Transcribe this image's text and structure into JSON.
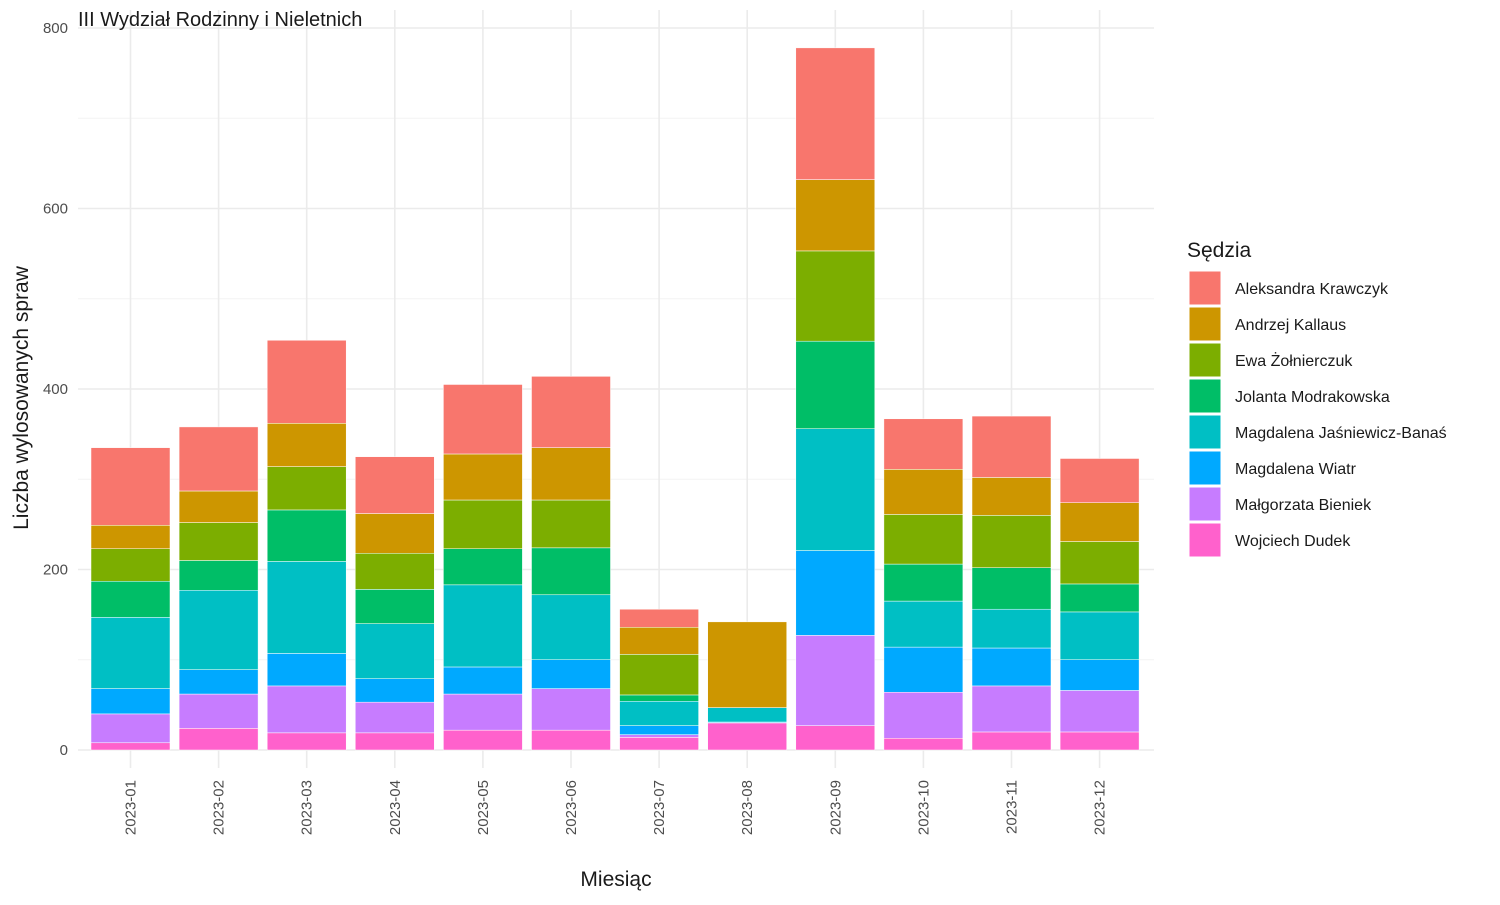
{
  "chart_data": {
    "type": "bar",
    "stacked": true,
    "title": "III Wydział Rodzinny i Nieletnich",
    "xlabel": "Miesiąc",
    "ylabel": "Liczba wylosowanych spraw",
    "ylim": [
      0,
      800
    ],
    "yticks": [
      0,
      200,
      400,
      600,
      800
    ],
    "grid": true,
    "legend_title": "Sędzia",
    "legend_position": "right",
    "categories": [
      "2023-01",
      "2023-02",
      "2023-03",
      "2023-04",
      "2023-05",
      "2023-06",
      "2023-07",
      "2023-08",
      "2023-09",
      "2023-10",
      "2023-11",
      "2023-12"
    ],
    "series": [
      {
        "name": "Aleksandra Krawczyk",
        "color": "#F8766D",
        "values": [
          86,
          71,
          92,
          63,
          77,
          79,
          20,
          0,
          146,
          56,
          68,
          49
        ]
      },
      {
        "name": "Andrzej Kallaus",
        "color": "#CD9600",
        "values": [
          26,
          35,
          48,
          44,
          51,
          58,
          30,
          95,
          79,
          50,
          42,
          43
        ]
      },
      {
        "name": "Ewa Żołnierczuk",
        "color": "#7CAE00",
        "values": [
          36,
          42,
          48,
          40,
          54,
          53,
          45,
          0,
          100,
          55,
          58,
          47
        ]
      },
      {
        "name": "Jolanta Modrakowska",
        "color": "#00BE67",
        "values": [
          40,
          33,
          57,
          38,
          40,
          52,
          7,
          0,
          97,
          41,
          46,
          31
        ]
      },
      {
        "name": "Magdalena Jaśniewicz-Banaś",
        "color": "#00BFC4",
        "values": [
          79,
          88,
          102,
          61,
          91,
          72,
          27,
          16,
          135,
          51,
          43,
          53
        ]
      },
      {
        "name": "Magdalena Wiatr",
        "color": "#00A9FF",
        "values": [
          28,
          27,
          36,
          26,
          30,
          32,
          10,
          1,
          94,
          50,
          42,
          34
        ]
      },
      {
        "name": "Małgorzata Bieniek",
        "color": "#C77CFF",
        "values": [
          32,
          38,
          52,
          34,
          40,
          46,
          3,
          0,
          100,
          51,
          51,
          46
        ]
      },
      {
        "name": "Wojciech Dudek",
        "color": "#FF61CC",
        "values": [
          8,
          24,
          19,
          19,
          22,
          22,
          14,
          30,
          27,
          13,
          20,
          20
        ]
      }
    ]
  }
}
